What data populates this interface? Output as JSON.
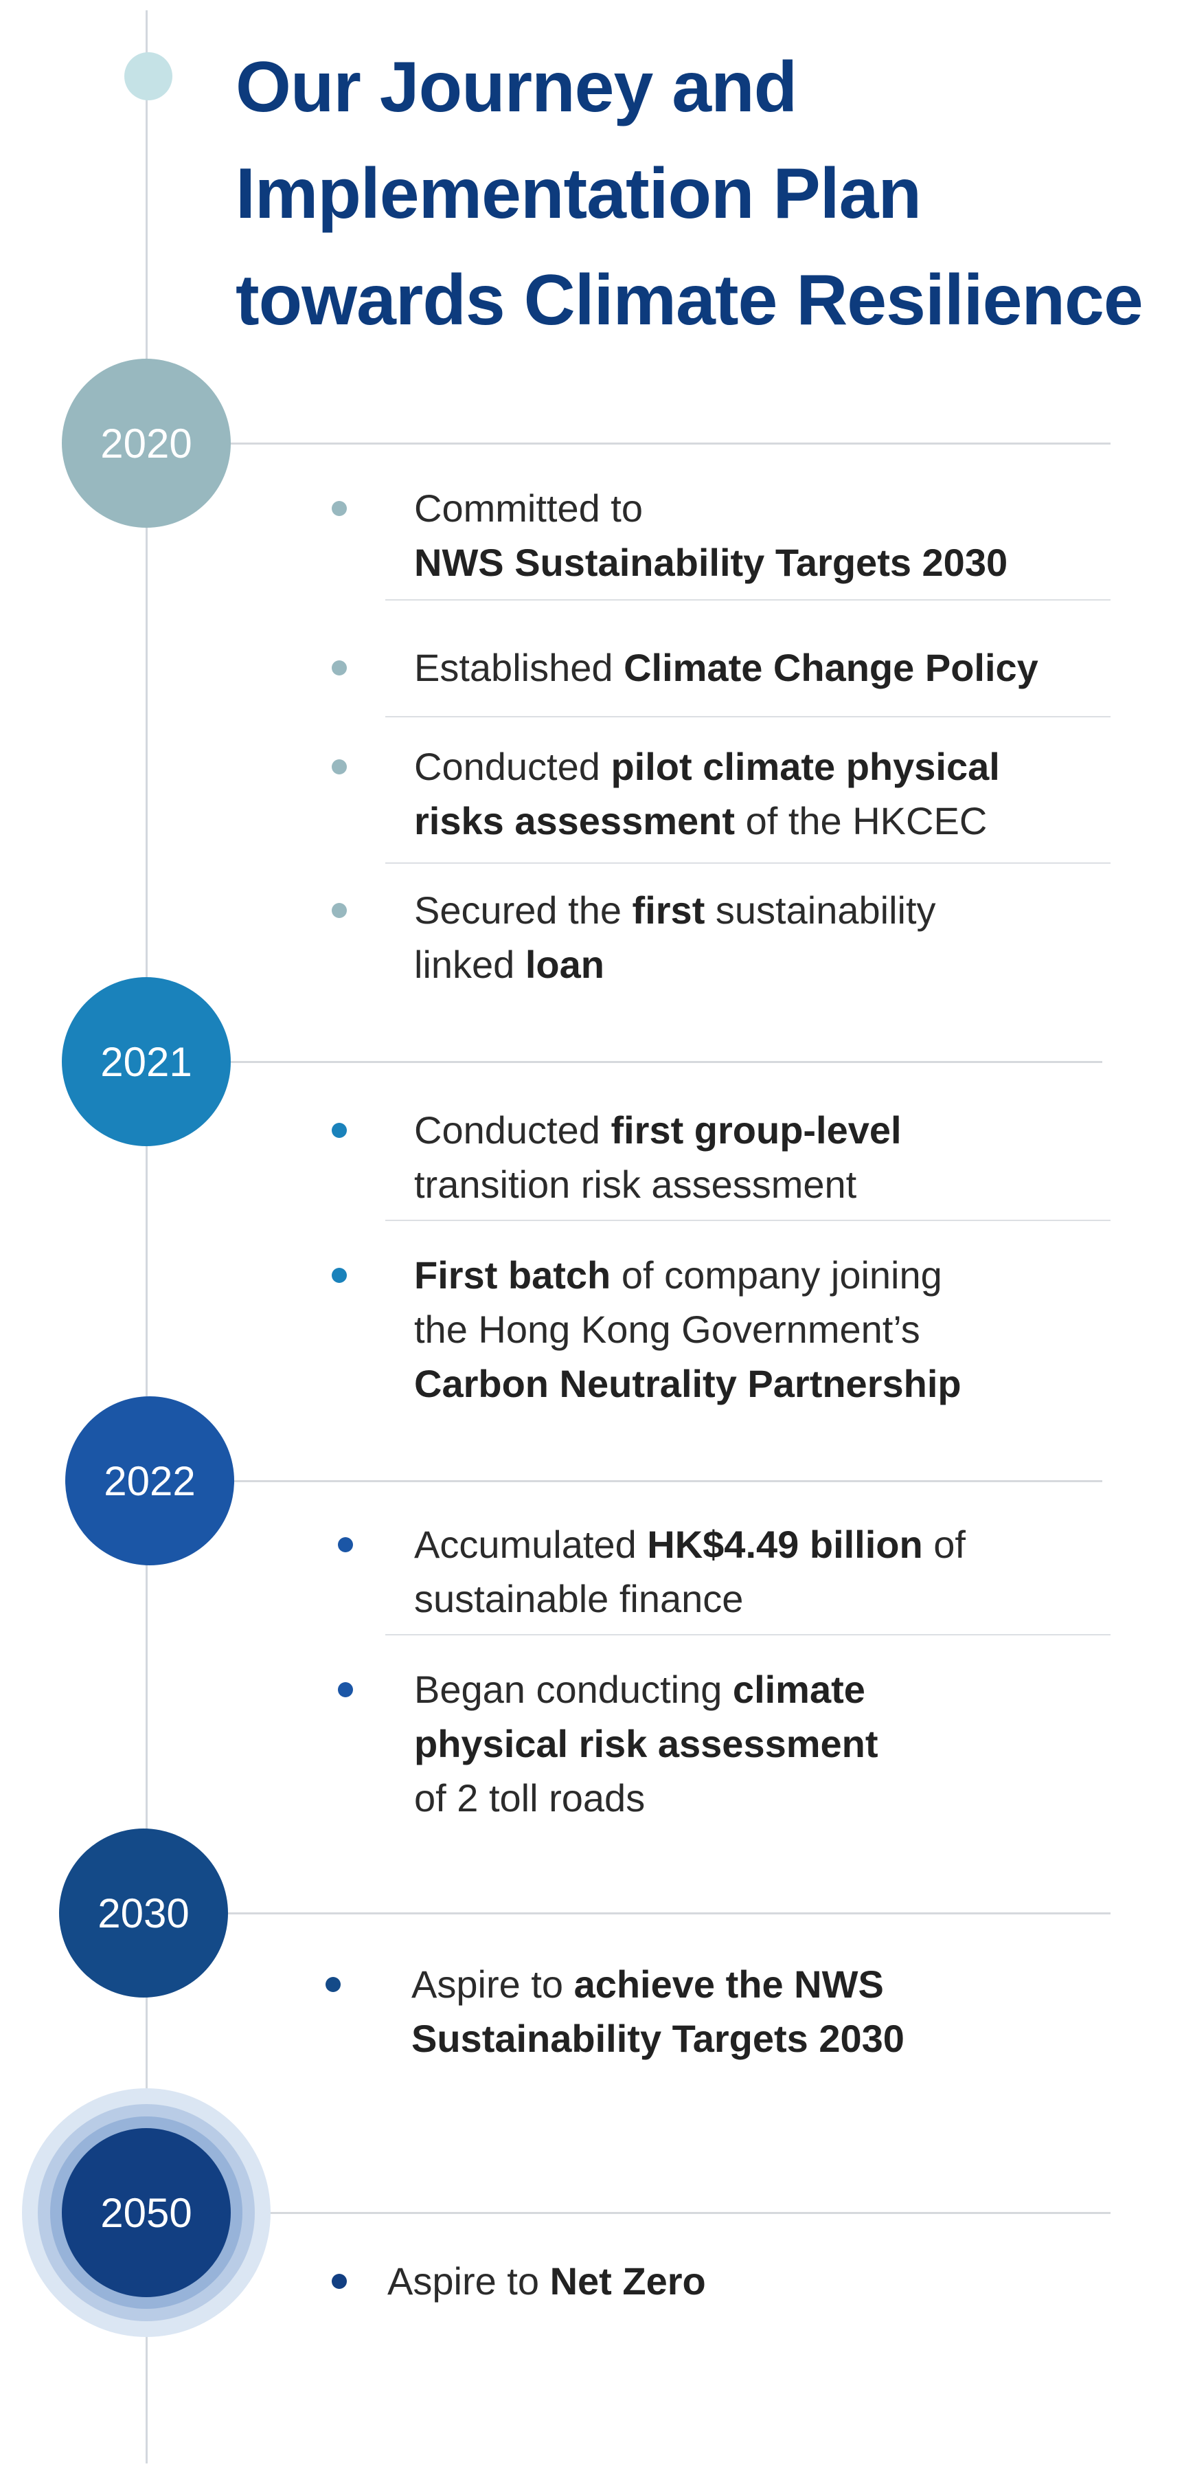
{
  "title": {
    "lines": [
      "Our Journey and",
      "Implementation Plan",
      "towards Climate Resilience"
    ],
    "color": "#0d3b7d"
  },
  "milestones": [
    {
      "year": "2020",
      "color": "#98b8bf",
      "items": [
        {
          "lines": [
            [
              {
                "t": "Committed to",
                "b": false
              }
            ],
            [
              {
                "t": "NWS Sustainability Targets 2030",
                "b": true
              }
            ]
          ]
        },
        {
          "lines": [
            [
              {
                "t": "Established ",
                "b": false
              },
              {
                "t": "Climate Change Policy",
                "b": true
              }
            ]
          ]
        },
        {
          "lines": [
            [
              {
                "t": "Conducted ",
                "b": false
              },
              {
                "t": "pilot climate physical",
                "b": true
              }
            ],
            [
              {
                "t": "risks assessment",
                "b": true
              },
              {
                "t": " of the HKCEC",
                "b": false
              }
            ]
          ]
        },
        {
          "lines": [
            [
              {
                "t": "Secured the ",
                "b": false
              },
              {
                "t": "first",
                "b": true
              },
              {
                "t": " sustainability",
                "b": false
              }
            ],
            [
              {
                "t": "linked ",
                "b": false
              },
              {
                "t": "loan",
                "b": true
              }
            ]
          ]
        }
      ]
    },
    {
      "year": "2021",
      "color": "#1a82bb",
      "items": [
        {
          "lines": [
            [
              {
                "t": "Conducted ",
                "b": false
              },
              {
                "t": "first group-level",
                "b": true
              }
            ],
            [
              {
                "t": "transition risk assessment",
                "b": false
              }
            ]
          ]
        },
        {
          "lines": [
            [
              {
                "t": "First batch",
                "b": true
              },
              {
                "t": " of company joining",
                "b": false
              }
            ],
            [
              {
                "t": "the Hong Kong Government’s",
                "b": false
              }
            ],
            [
              {
                "t": "Carbon Neutrality Partnership",
                "b": true
              }
            ]
          ]
        }
      ]
    },
    {
      "year": "2022",
      "color": "#1b56a6",
      "items": [
        {
          "lines": [
            [
              {
                "t": "Accumulated ",
                "b": false
              },
              {
                "t": "HK$4.49 billion",
                "b": true
              },
              {
                "t": " of",
                "b": false
              }
            ],
            [
              {
                "t": "sustainable finance",
                "b": false
              }
            ]
          ]
        },
        {
          "lines": [
            [
              {
                "t": "Began conducting ",
                "b": false
              },
              {
                "t": "climate",
                "b": true
              }
            ],
            [
              {
                "t": "physical risk assessment",
                "b": true
              }
            ],
            [
              {
                "t": "of 2 toll roads",
                "b": false
              }
            ]
          ]
        }
      ]
    },
    {
      "year": "2030",
      "color": "#144a88",
      "items": [
        {
          "lines": [
            [
              {
                "t": "Aspire to ",
                "b": false
              },
              {
                "t": "achieve the NWS",
                "b": true
              }
            ],
            [
              {
                "t": "Sustainability Targets 2030",
                "b": true
              }
            ]
          ]
        }
      ]
    },
    {
      "year": "2050",
      "color": "#123f82",
      "items": [
        {
          "lines": [
            [
              {
                "t": "Aspire to ",
                "b": false
              },
              {
                "t": "Net Zero",
                "b": true
              }
            ]
          ]
        }
      ]
    }
  ]
}
